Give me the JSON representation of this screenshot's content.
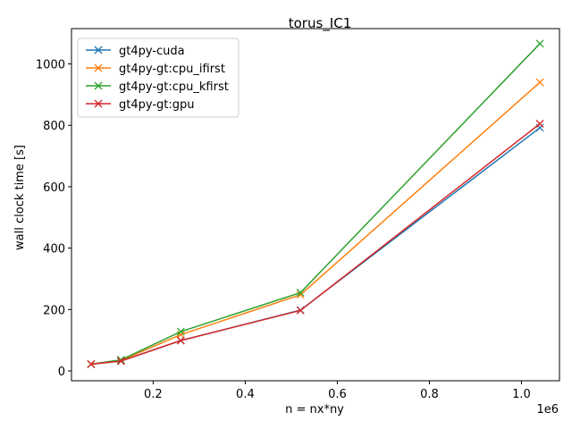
{
  "chart_data": {
    "type": "line",
    "title": "torus_IC1",
    "xlabel": "n = nx*ny",
    "ylabel": "wall clock time [s]",
    "x_offset_text": "1e6",
    "xlim": [
      0.0226,
      1.0826
    ],
    "ylim": [
      -32,
      1115
    ],
    "xticks": [
      0.2,
      0.4,
      0.6,
      0.8,
      1.0
    ],
    "xtick_labels": [
      "0.2",
      "0.4",
      "0.6",
      "0.8",
      "1.0"
    ],
    "yticks": [
      0,
      200,
      400,
      600,
      800,
      1000
    ],
    "ytick_labels": [
      "0",
      "200",
      "400",
      "600",
      "800",
      "1000"
    ],
    "grid": false,
    "legend_position": "upper-left",
    "x": [
      0.065,
      0.13,
      0.26,
      0.52,
      1.04
    ],
    "series": [
      {
        "name": "gt4py-cuda",
        "color": "#1f77b4",
        "marker": "x",
        "values": [
          22,
          32,
          99,
          198,
          792
        ]
      },
      {
        "name": "gt4py-gt:cpu_ifirst",
        "color": "#ff7f0e",
        "marker": "x",
        "values": [
          22,
          34,
          118,
          248,
          940
        ]
      },
      {
        "name": "gt4py-gt:cpu_kfirst",
        "color": "#2ca02c",
        "marker": "x",
        "values": [
          22,
          36,
          128,
          255,
          1066
        ]
      },
      {
        "name": "gt4py-gt:gpu",
        "color": "#d62728",
        "marker": "x",
        "values": [
          22,
          32,
          99,
          197,
          805
        ]
      }
    ]
  }
}
